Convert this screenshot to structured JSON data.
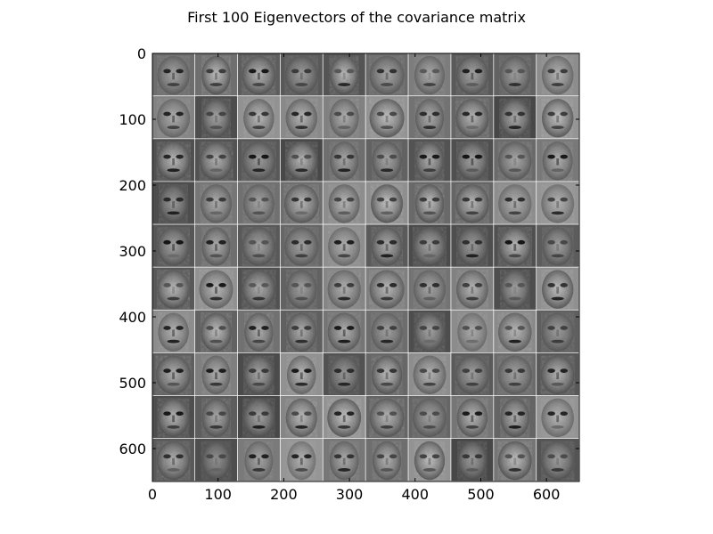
{
  "chart_data": {
    "type": "heatmap",
    "title": "First 100 Eigenvectors of the covariance matrix",
    "xlabel": "",
    "ylabel": "",
    "xlim": [
      0,
      650
    ],
    "ylim": [
      650,
      0
    ],
    "x_ticks": [
      0,
      100,
      200,
      300,
      400,
      500,
      600
    ],
    "y_ticks": [
      0,
      100,
      200,
      300,
      400,
      500,
      600
    ],
    "grid": {
      "rows": 10,
      "cols": 10,
      "tile_size": 64,
      "separator": 1,
      "separator_color": "#ffffff"
    },
    "image_content": "grayscale eigenface images",
    "colormap": "gray",
    "grid_lines": false
  }
}
